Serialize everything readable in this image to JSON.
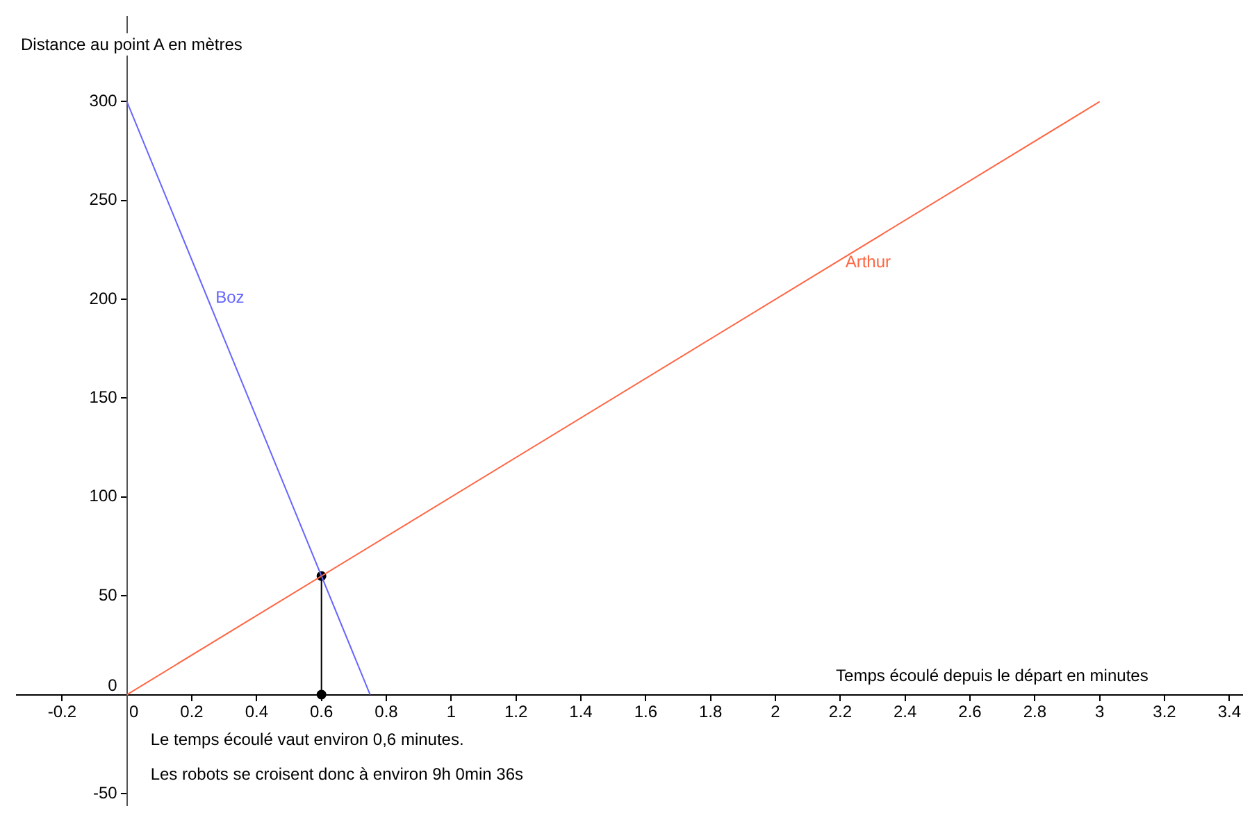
{
  "chart_data": {
    "type": "line",
    "xlabel": "Temps écoulé depuis le départ en minutes",
    "ylabel": "Distance au point A en mètres",
    "series": [
      {
        "name": "Boz",
        "color": "#6666ff",
        "x": [
          0,
          0.75
        ],
        "values": [
          300,
          0
        ]
      },
      {
        "name": "Arthur",
        "color": "#ff6644",
        "x": [
          0,
          3
        ],
        "values": [
          0,
          300
        ]
      },
      {
        "color": "#000000",
        "x": [
          0.6,
          0.6
        ],
        "values": [
          60,
          0
        ],
        "marker": "circle"
      }
    ],
    "xlim": [
      -0.34,
      3.44
    ],
    "ylim": [
      -56,
      343
    ],
    "xticks": [
      -0.2,
      0,
      0.2,
      0.4,
      0.6,
      0.8,
      1,
      1.2,
      1.4,
      1.6,
      1.8,
      2,
      2.2,
      2.4,
      2.6,
      2.8,
      3,
      3.2,
      3.4
    ],
    "yticks": [
      -50,
      0,
      50,
      100,
      150,
      200,
      250,
      300
    ],
    "grid": false,
    "legend": false,
    "marker": "none",
    "line_style": "solid",
    "annotations": [
      "Le temps écoulé vaut environ 0,6 minutes.",
      "Les robots se croisent donc à environ 9h 0min 36s"
    ]
  }
}
